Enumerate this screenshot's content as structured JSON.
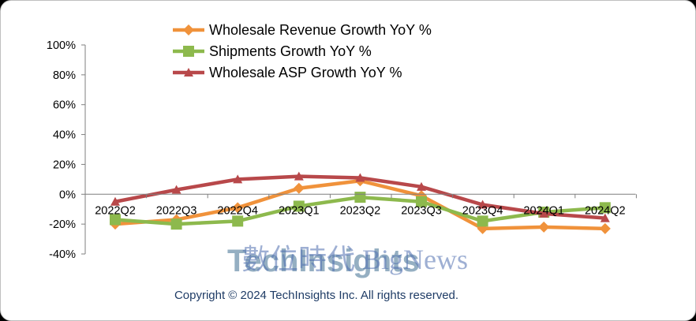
{
  "chart_data": {
    "type": "line",
    "title": "",
    "xlabel": "",
    "ylabel": "",
    "categories": [
      "2022Q2",
      "2022Q3",
      "2022Q4",
      "2023Q1",
      "2023Q2",
      "2023Q3",
      "2023Q4",
      "2024Q1",
      "2024Q2"
    ],
    "y_tick_labels": [
      "100%",
      "80%",
      "60%",
      "40%",
      "20%",
      "0%",
      "-20%",
      "-40%"
    ],
    "y_ticks": [
      100,
      80,
      60,
      40,
      20,
      0,
      -20,
      -40
    ],
    "ylim": [
      -40,
      100
    ],
    "grid": false,
    "legend_position": "top",
    "series": [
      {
        "name": "Wholesale Revenue Growth YoY %",
        "color": "#f0923b",
        "marker": "diamond",
        "values": [
          -20,
          -17,
          -9,
          4,
          9,
          -1,
          -23,
          -22,
          -23
        ]
      },
      {
        "name": "Shipments Growth YoY %",
        "color": "#8db94d",
        "marker": "square",
        "values": [
          -17,
          -20,
          -18,
          -8,
          -2,
          -5,
          -18,
          -12,
          -9
        ]
      },
      {
        "name": "Wholesale ASP Growth YoY %",
        "color": "#b8484a",
        "marker": "triangle",
        "values": [
          -5,
          3,
          10,
          12,
          11,
          5,
          -7,
          -13,
          -16
        ]
      }
    ]
  },
  "watermark": {
    "logo_text": "TechInsights",
    "brand_text": "數位時代 BigNews"
  },
  "copyright": "Copyright © 2024 TechInsights Inc.  All rights reserved."
}
